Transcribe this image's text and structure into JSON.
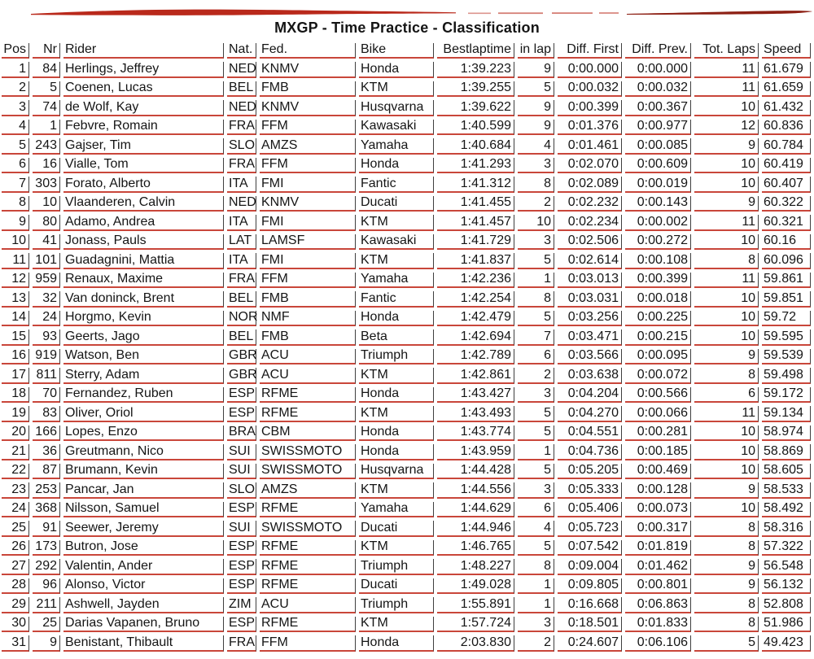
{
  "page": {
    "title": "MXGP - Time Practice - Classification"
  },
  "colors": {
    "rule_red": "#c9463a",
    "rule_dark": "#3f3f3f",
    "swoosh_left": "#b9291b",
    "swoosh_right": "#8d2014",
    "text": "#151515"
  },
  "table": {
    "columns": [
      "Pos",
      "Nr",
      "Rider",
      "Nat.",
      "Fed.",
      "Bike",
      "Bestlaptime",
      "in lap",
      "Diff. First",
      "Diff. Prev.",
      "Tot. Laps",
      "Speed"
    ],
    "column_keys": [
      "pos",
      "nr",
      "rider",
      "nat",
      "fed",
      "bike",
      "bestlaptime",
      "in-lap",
      "diff-first",
      "diff-prev",
      "tot-laps",
      "speed"
    ],
    "rows": [
      [
        "1",
        "84",
        "Herlings, Jeffrey",
        "NED",
        "KNMV",
        "Honda",
        "1:39.223",
        "9",
        "0:00.000",
        "0:00.000",
        "11",
        "61.679"
      ],
      [
        "2",
        "5",
        "Coenen, Lucas",
        "BEL",
        "FMB",
        "KTM",
        "1:39.255",
        "5",
        "0:00.032",
        "0:00.032",
        "11",
        "61.659"
      ],
      [
        "3",
        "74",
        "de Wolf, Kay",
        "NED",
        "KNMV",
        "Husqvarna",
        "1:39.622",
        "9",
        "0:00.399",
        "0:00.367",
        "10",
        "61.432"
      ],
      [
        "4",
        "1",
        "Febvre, Romain",
        "FRA",
        "FFM",
        "Kawasaki",
        "1:40.599",
        "9",
        "0:01.376",
        "0:00.977",
        "12",
        "60.836"
      ],
      [
        "5",
        "243",
        "Gajser, Tim",
        "SLO",
        "AMZS",
        "Yamaha",
        "1:40.684",
        "4",
        "0:01.461",
        "0:00.085",
        "9",
        "60.784"
      ],
      [
        "6",
        "16",
        "Vialle, Tom",
        "FRA",
        "FFM",
        "Honda",
        "1:41.293",
        "3",
        "0:02.070",
        "0:00.609",
        "10",
        "60.419"
      ],
      [
        "7",
        "303",
        "Forato, Alberto",
        "ITA",
        "FMI",
        "Fantic",
        "1:41.312",
        "8",
        "0:02.089",
        "0:00.019",
        "10",
        "60.407"
      ],
      [
        "8",
        "10",
        "Vlaanderen, Calvin",
        "NED",
        "KNMV",
        "Ducati",
        "1:41.455",
        "2",
        "0:02.232",
        "0:00.143",
        "9",
        "60.322"
      ],
      [
        "9",
        "80",
        "Adamo, Andrea",
        "ITA",
        "FMI",
        "KTM",
        "1:41.457",
        "10",
        "0:02.234",
        "0:00.002",
        "11",
        "60.321"
      ],
      [
        "10",
        "41",
        "Jonass, Pauls",
        "LAT",
        "LAMSF",
        "Kawasaki",
        "1:41.729",
        "3",
        "0:02.506",
        "0:00.272",
        "10",
        "60.16"
      ],
      [
        "11",
        "101",
        "Guadagnini, Mattia",
        "ITA",
        "FMI",
        "KTM",
        "1:41.837",
        "5",
        "0:02.614",
        "0:00.108",
        "8",
        "60.096"
      ],
      [
        "12",
        "959",
        "Renaux, Maxime",
        "FRA",
        "FFM",
        "Yamaha",
        "1:42.236",
        "1",
        "0:03.013",
        "0:00.399",
        "11",
        "59.861"
      ],
      [
        "13",
        "32",
        "Van doninck, Brent",
        "BEL",
        "FMB",
        "Fantic",
        "1:42.254",
        "8",
        "0:03.031",
        "0:00.018",
        "10",
        "59.851"
      ],
      [
        "14",
        "24",
        "Horgmo, Kevin",
        "NOR",
        "NMF",
        "Honda",
        "1:42.479",
        "5",
        "0:03.256",
        "0:00.225",
        "10",
        "59.72"
      ],
      [
        "15",
        "93",
        "Geerts, Jago",
        "BEL",
        "FMB",
        "Beta",
        "1:42.694",
        "7",
        "0:03.471",
        "0:00.215",
        "10",
        "59.595"
      ],
      [
        "16",
        "919",
        "Watson, Ben",
        "GBR",
        "ACU",
        "Triumph",
        "1:42.789",
        "6",
        "0:03.566",
        "0:00.095",
        "9",
        "59.539"
      ],
      [
        "17",
        "811",
        "Sterry, Adam",
        "GBR",
        "ACU",
        "KTM",
        "1:42.861",
        "2",
        "0:03.638",
        "0:00.072",
        "8",
        "59.498"
      ],
      [
        "18",
        "70",
        "Fernandez, Ruben",
        "ESP",
        "RFME",
        "Honda",
        "1:43.427",
        "3",
        "0:04.204",
        "0:00.566",
        "6",
        "59.172"
      ],
      [
        "19",
        "83",
        "Oliver, Oriol",
        "ESP",
        "RFME",
        "KTM",
        "1:43.493",
        "5",
        "0:04.270",
        "0:00.066",
        "11",
        "59.134"
      ],
      [
        "20",
        "166",
        "Lopes, Enzo",
        "BRA",
        "CBM",
        "Honda",
        "1:43.774",
        "5",
        "0:04.551",
        "0:00.281",
        "10",
        "58.974"
      ],
      [
        "21",
        "36",
        "Greutmann, Nico",
        "SUI",
        "SWISSMOTO",
        "Honda",
        "1:43.959",
        "1",
        "0:04.736",
        "0:00.185",
        "10",
        "58.869"
      ],
      [
        "22",
        "87",
        "Brumann, Kevin",
        "SUI",
        "SWISSMOTO",
        "Husqvarna",
        "1:44.428",
        "5",
        "0:05.205",
        "0:00.469",
        "10",
        "58.605"
      ],
      [
        "23",
        "253",
        "Pancar, Jan",
        "SLO",
        "AMZS",
        "KTM",
        "1:44.556",
        "3",
        "0:05.333",
        "0:00.128",
        "9",
        "58.533"
      ],
      [
        "24",
        "368",
        "Nilsson, Samuel",
        "ESP",
        "RFME",
        "Yamaha",
        "1:44.629",
        "6",
        "0:05.406",
        "0:00.073",
        "10",
        "58.492"
      ],
      [
        "25",
        "91",
        "Seewer, Jeremy",
        "SUI",
        "SWISSMOTO",
        "Ducati",
        "1:44.946",
        "4",
        "0:05.723",
        "0:00.317",
        "8",
        "58.316"
      ],
      [
        "26",
        "173",
        "Butron, Jose",
        "ESP",
        "RFME",
        "KTM",
        "1:46.765",
        "5",
        "0:07.542",
        "0:01.819",
        "8",
        "57.322"
      ],
      [
        "27",
        "292",
        "Valentin, Ander",
        "ESP",
        "RFME",
        "Triumph",
        "1:48.227",
        "8",
        "0:09.004",
        "0:01.462",
        "9",
        "56.548"
      ],
      [
        "28",
        "96",
        "Alonso, Victor",
        "ESP",
        "RFME",
        "Ducati",
        "1:49.028",
        "1",
        "0:09.805",
        "0:00.801",
        "9",
        "56.132"
      ],
      [
        "29",
        "211",
        "Ashwell, Jayden",
        "ZIM",
        "ACU",
        "Triumph",
        "1:55.891",
        "1",
        "0:16.668",
        "0:06.863",
        "8",
        "52.808"
      ],
      [
        "30",
        "25",
        "Darias Vapanen, Bruno",
        "ESP",
        "RFME",
        "KTM",
        "1:57.724",
        "3",
        "0:18.501",
        "0:01.833",
        "8",
        "51.986"
      ],
      [
        "31",
        "9",
        "Benistant, Thibault",
        "FRA",
        "FFM",
        "Honda",
        "2:03.830",
        "2",
        "0:24.607",
        "0:06.106",
        "5",
        "49.423"
      ]
    ]
  }
}
